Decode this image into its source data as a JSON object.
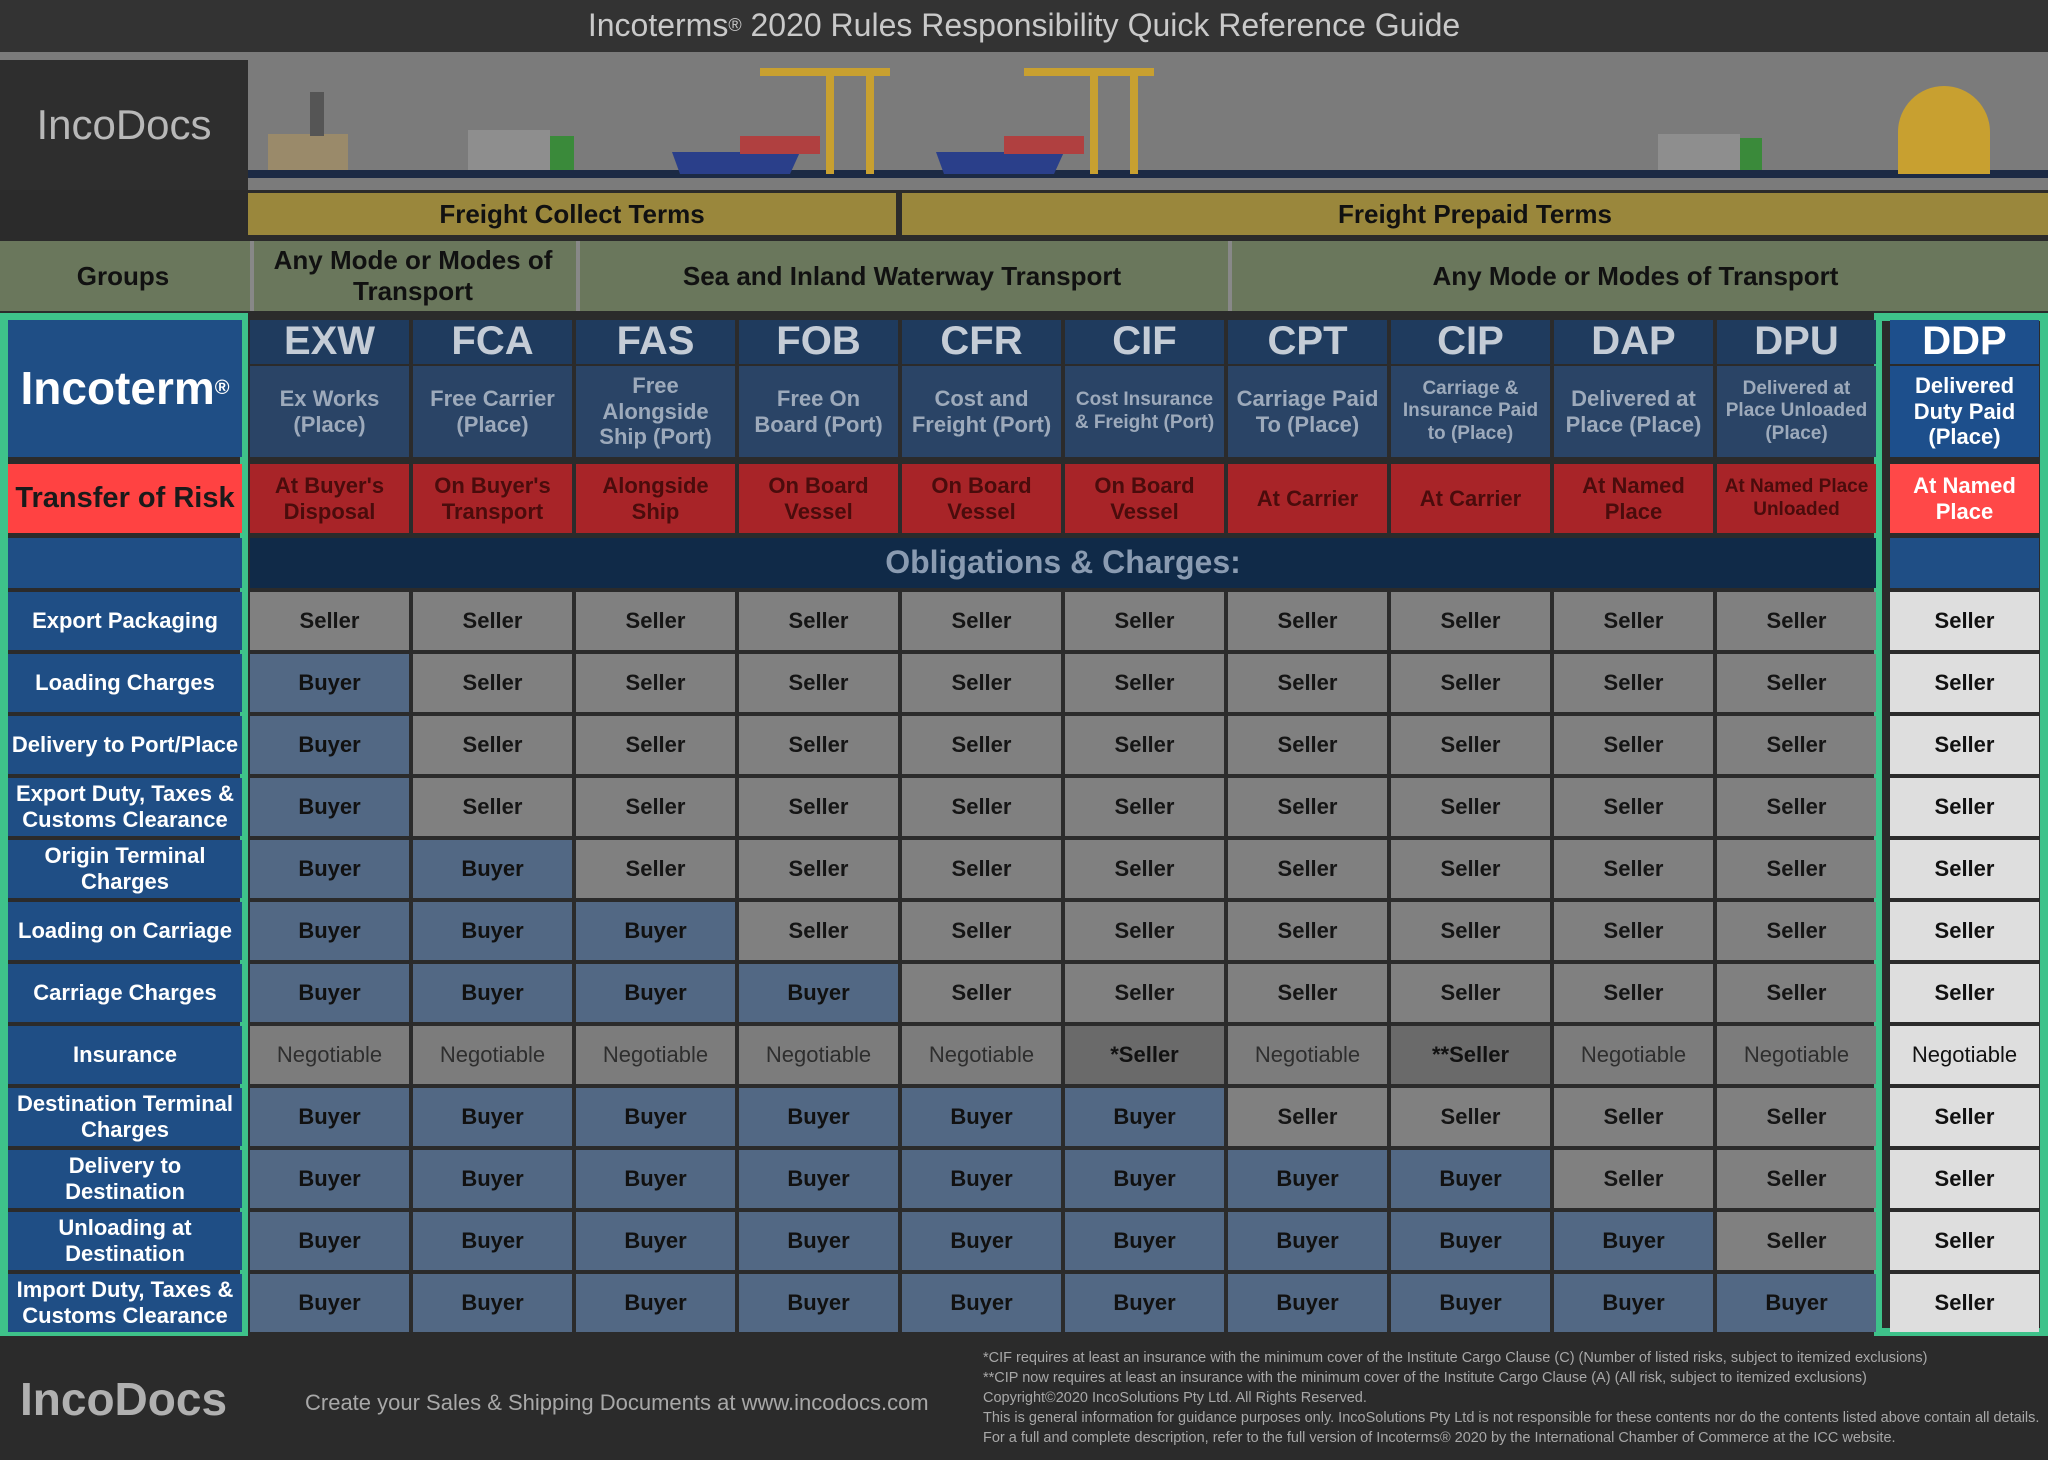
{
  "header": {
    "title_brand": "Incoterms",
    "title_mark": "®",
    "title_rest": "2020 Rules Responsibility Quick Reference Guide",
    "logo": "IncoDocs"
  },
  "freight_terms": [
    "Freight Collect Terms",
    "Freight Prepaid Terms"
  ],
  "groups": {
    "label": "Groups",
    "items": [
      "Any Mode or Modes of Transport",
      "Sea and Inland Waterway Transport",
      "Any Mode or Modes of Transport"
    ]
  },
  "incoterm_label": "Incoterm",
  "incoterm_mark": "®",
  "risk_label": "Transfer of Risk",
  "terms": [
    {
      "code": "EXW",
      "name": "Ex Works (Place)",
      "risk": "At Buyer's Disposal"
    },
    {
      "code": "FCA",
      "name": "Free Carrier (Place)",
      "risk": "On Buyer's Transport"
    },
    {
      "code": "FAS",
      "name": "Free Alongside Ship (Port)",
      "risk": "Alongside Ship"
    },
    {
      "code": "FOB",
      "name": "Free On Board (Port)",
      "risk": "On Board Vessel"
    },
    {
      "code": "CFR",
      "name": "Cost and Freight (Port)",
      "risk": "On Board Vessel"
    },
    {
      "code": "CIF",
      "name": "Cost Insurance & Freight (Port)",
      "risk": "On Board Vessel"
    },
    {
      "code": "CPT",
      "name": "Carriage Paid To (Place)",
      "risk": "At Carrier"
    },
    {
      "code": "CIP",
      "name": "Carriage & Insurance Paid to (Place)",
      "risk": "At Carrier"
    },
    {
      "code": "DAP",
      "name": "Delivered at Place (Place)",
      "risk": "At Named Place"
    },
    {
      "code": "DPU",
      "name": "Delivered at Place Unloaded (Place)",
      "risk": "At Named Place Unloaded"
    },
    {
      "code": "DDP",
      "name": "Delivered Duty Paid (Place)",
      "risk": "At Named Place"
    }
  ],
  "obligations_title": "Obligations & Charges:",
  "rows": [
    {
      "label": "Export Packaging",
      "values": [
        "Seller",
        "Seller",
        "Seller",
        "Seller",
        "Seller",
        "Seller",
        "Seller",
        "Seller",
        "Seller",
        "Seller",
        "Seller"
      ]
    },
    {
      "label": "Loading Charges",
      "values": [
        "Buyer",
        "Seller",
        "Seller",
        "Seller",
        "Seller",
        "Seller",
        "Seller",
        "Seller",
        "Seller",
        "Seller",
        "Seller"
      ]
    },
    {
      "label": "Delivery to Port/Place",
      "values": [
        "Buyer",
        "Seller",
        "Seller",
        "Seller",
        "Seller",
        "Seller",
        "Seller",
        "Seller",
        "Seller",
        "Seller",
        "Seller"
      ]
    },
    {
      "label": "Export Duty, Taxes & Customs Clearance",
      "values": [
        "Buyer",
        "Seller",
        "Seller",
        "Seller",
        "Seller",
        "Seller",
        "Seller",
        "Seller",
        "Seller",
        "Seller",
        "Seller"
      ]
    },
    {
      "label": "Origin Terminal Charges",
      "values": [
        "Buyer",
        "Buyer",
        "Seller",
        "Seller",
        "Seller",
        "Seller",
        "Seller",
        "Seller",
        "Seller",
        "Seller",
        "Seller"
      ]
    },
    {
      "label": "Loading on Carriage",
      "values": [
        "Buyer",
        "Buyer",
        "Buyer",
        "Seller",
        "Seller",
        "Seller",
        "Seller",
        "Seller",
        "Seller",
        "Seller",
        "Seller"
      ]
    },
    {
      "label": "Carriage Charges",
      "values": [
        "Buyer",
        "Buyer",
        "Buyer",
        "Buyer",
        "Seller",
        "Seller",
        "Seller",
        "Seller",
        "Seller",
        "Seller",
        "Seller"
      ]
    },
    {
      "label": "Insurance",
      "values": [
        "Negotiable",
        "Negotiable",
        "Negotiable",
        "Negotiable",
        "Negotiable",
        "*Seller",
        "Negotiable",
        "**Seller",
        "Negotiable",
        "Negotiable",
        "Negotiable"
      ]
    },
    {
      "label": "Destination Terminal Charges",
      "values": [
        "Buyer",
        "Buyer",
        "Buyer",
        "Buyer",
        "Buyer",
        "Buyer",
        "Seller",
        "Seller",
        "Seller",
        "Seller",
        "Seller"
      ]
    },
    {
      "label": "Delivery to Destination",
      "values": [
        "Buyer",
        "Buyer",
        "Buyer",
        "Buyer",
        "Buyer",
        "Buyer",
        "Buyer",
        "Buyer",
        "Seller",
        "Seller",
        "Seller"
      ]
    },
    {
      "label": "Unloading at Destination",
      "values": [
        "Buyer",
        "Buyer",
        "Buyer",
        "Buyer",
        "Buyer",
        "Buyer",
        "Buyer",
        "Buyer",
        "Buyer",
        "Seller",
        "Seller"
      ]
    },
    {
      "label": "Import Duty, Taxes & Customs Clearance",
      "values": [
        "Buyer",
        "Buyer",
        "Buyer",
        "Buyer",
        "Buyer",
        "Buyer",
        "Buyer",
        "Buyer",
        "Buyer",
        "Buyer",
        "Seller"
      ]
    }
  ],
  "footer": {
    "logo": "IncoDocs",
    "tagline": "Create your Sales & Shipping Documents at www.incodocs.com",
    "notes": [
      "*CIF requires at least an insurance with the minimum cover of the Institute Cargo Clause (C) (Number of listed risks, subject to itemized exclusions)",
      "**CIP now requires at least an insurance with the minimum cover of the Institute Cargo Clause (A) (All risk, subject to itemized exclusions)",
      "Copyright©2020 IncoSolutions Pty Ltd. All Rights Reserved.",
      "This is general information for guidance purposes only.  IncoSolutions Pty Ltd is not responsible for these contents nor do the contents listed above contain all details.  For a full and complete description, refer to the full version of Incoterms® 2020 by the International Chamber of Commerce at the ICC website."
    ]
  },
  "cell_styles": {
    "Seller": {
      "bg": "#808080",
      "fg": "#151515",
      "weight": "bold"
    },
    "Buyer": {
      "bg": "#526884",
      "fg": "#111111",
      "weight": "bold"
    },
    "Negotiable": {
      "bg": "#7c7c7c",
      "fg": "#2e2e2e",
      "weight": "normal"
    },
    "*Seller": {
      "bg": "#6a6a6a",
      "fg": "#111111",
      "weight": "bold"
    },
    "**Seller": {
      "bg": "#6a6a6a",
      "fg": "#111111",
      "weight": "bold"
    }
  },
  "highlight_column": {
    "bg": "#dedede",
    "fg": "#111111"
  }
}
